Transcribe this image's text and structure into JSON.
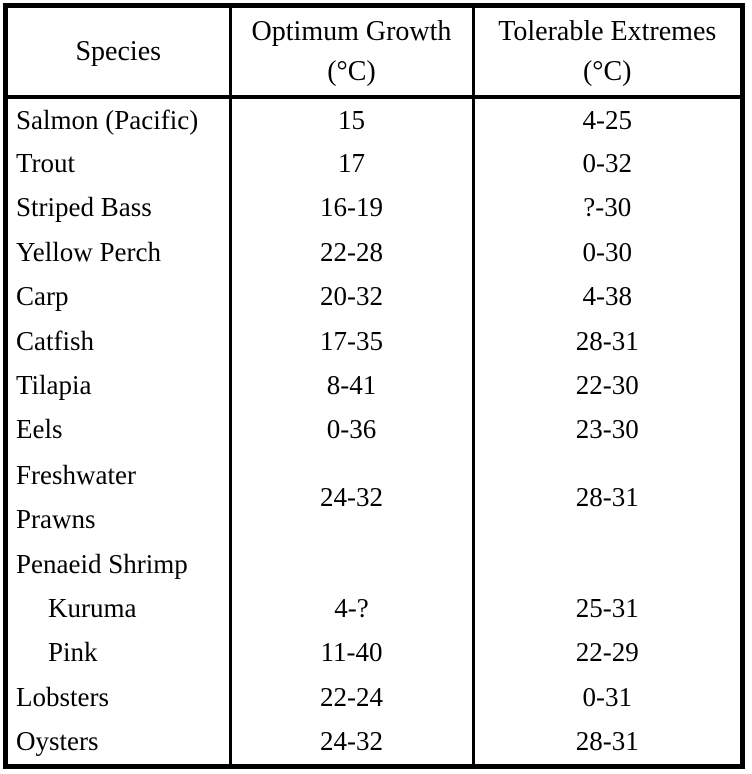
{
  "table": {
    "header": {
      "species": "Species",
      "optimum_line1": "Optimum Growth",
      "optimum_line2": "(°C)",
      "tolerable_line1": "Tolerable Extremes",
      "tolerable_line2": "(°C)"
    },
    "rows": [
      {
        "species": "Salmon (Pacific)",
        "optimum": "15",
        "tolerable": "4-25"
      },
      {
        "species": "Trout",
        "optimum": "17",
        "tolerable": "0-32"
      },
      {
        "species": "Striped Bass",
        "optimum": "16-19",
        "tolerable": "?-30"
      },
      {
        "species": "Yellow Perch",
        "optimum": "22-28",
        "tolerable": "0-30"
      },
      {
        "species": "Carp",
        "optimum": "20-32",
        "tolerable": "4-38"
      },
      {
        "species": "Catfish",
        "optimum": "17-35",
        "tolerable": "28-31"
      },
      {
        "species": "Tilapia",
        "optimum": "8-41",
        "tolerable": "22-30"
      },
      {
        "species": "Eels",
        "optimum": "0-36",
        "tolerable": "23-30"
      },
      {
        "species_line1": "Freshwater",
        "species_line2": "Prawns",
        "optimum": "24-32",
        "tolerable": "28-31"
      },
      {
        "species": "Penaeid Shrimp",
        "optimum": "",
        "tolerable": ""
      },
      {
        "species": "Kuruma",
        "indent": true,
        "optimum": "4-?",
        "tolerable": "25-31"
      },
      {
        "species": "Pink",
        "indent": true,
        "optimum": "11-40",
        "tolerable": "22-29"
      },
      {
        "species": "Lobsters",
        "optimum": "22-24",
        "tolerable": "0-31"
      },
      {
        "species": "Oysters",
        "optimum": "24-32",
        "tolerable": "28-31"
      }
    ]
  },
  "colors": {
    "border": "#000000",
    "text": "#000000",
    "background": "#ffffff"
  }
}
